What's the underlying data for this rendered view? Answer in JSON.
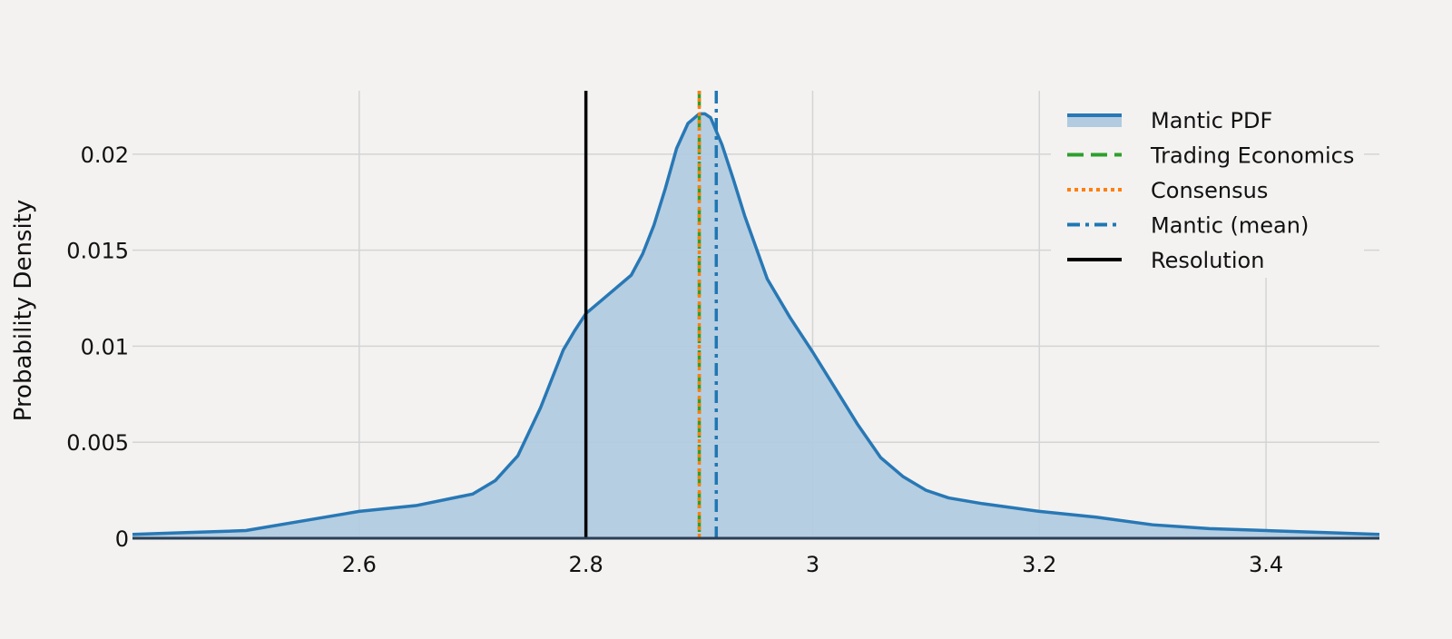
{
  "chart_data": {
    "type": "area",
    "title": "",
    "xlabel": "",
    "ylabel": "Probability Density",
    "xlim": [
      2.4,
      3.5
    ],
    "ylim": [
      0,
      0.0233
    ],
    "grid": true,
    "legend_position": "top-right",
    "x_ticks": [
      2.6,
      2.8,
      3.0,
      3.2,
      3.4
    ],
    "x_tick_labels": [
      "2.6",
      "2.8",
      "3",
      "3.2",
      "3.4"
    ],
    "y_ticks": [
      0,
      0.005,
      0.01,
      0.015,
      0.02
    ],
    "y_tick_labels": [
      "0",
      "0.005",
      "0.01",
      "0.015",
      "0.02"
    ],
    "series": [
      {
        "name": "Mantic PDF",
        "color": "#2878b5",
        "fill": "#b2cbdf",
        "x": [
          2.4,
          2.45,
          2.5,
          2.55,
          2.6,
          2.65,
          2.7,
          2.72,
          2.74,
          2.76,
          2.78,
          2.79,
          2.8,
          2.82,
          2.84,
          2.85,
          2.86,
          2.87,
          2.88,
          2.89,
          2.9,
          2.905,
          2.91,
          2.92,
          2.93,
          2.94,
          2.96,
          2.98,
          3.0,
          3.02,
          3.04,
          3.06,
          3.08,
          3.1,
          3.12,
          3.15,
          3.2,
          3.25,
          3.3,
          3.35,
          3.4,
          3.45,
          3.5
        ],
        "y": [
          0.0002,
          0.0003,
          0.0004,
          0.0009,
          0.0014,
          0.0017,
          0.0023,
          0.003,
          0.0043,
          0.0068,
          0.0098,
          0.0108,
          0.0117,
          0.0127,
          0.0137,
          0.0148,
          0.0163,
          0.0182,
          0.0203,
          0.0216,
          0.0221,
          0.0221,
          0.0219,
          0.0205,
          0.0187,
          0.0168,
          0.0135,
          0.0115,
          0.0097,
          0.0078,
          0.0059,
          0.0042,
          0.0032,
          0.0025,
          0.0021,
          0.0018,
          0.0014,
          0.0011,
          0.0007,
          0.0005,
          0.0004,
          0.0003,
          0.0002
        ]
      }
    ],
    "vlines": [
      {
        "name": "Trading Economics",
        "x": 2.9,
        "color": "#2ca02c",
        "style": "dash"
      },
      {
        "name": "Consensus",
        "x": 2.9,
        "color": "#ff7f0e",
        "style": "dot"
      },
      {
        "name": "Mantic (mean)",
        "x": 2.915,
        "color": "#1f77b4",
        "style": "dashdot"
      },
      {
        "name": "Resolution",
        "x": 2.8,
        "color": "#000000",
        "style": "solid"
      }
    ]
  }
}
